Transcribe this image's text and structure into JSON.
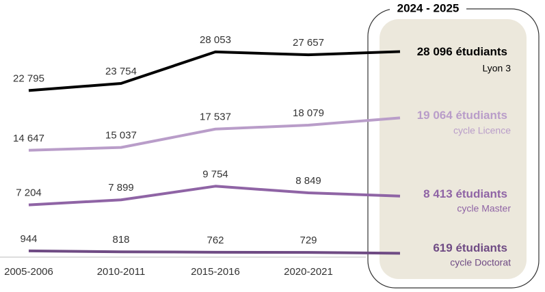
{
  "chart_data": {
    "type": "line",
    "categories": [
      "2005-2006",
      "2010-2011",
      "2015-2016",
      "2020-2021",
      "2024 - 2025"
    ],
    "unit_label": "étudiants",
    "ylim": [
      0,
      30000
    ],
    "series": [
      {
        "name": "Lyon 3",
        "color": "#000000",
        "values": [
          22795,
          23754,
          28053,
          27657,
          28096
        ],
        "value_labels": [
          "22 795",
          "23 754",
          "28 053",
          "27 657",
          "28 096"
        ]
      },
      {
        "name": "cycle Licence",
        "color": "#b99dc9",
        "values": [
          14647,
          15037,
          17537,
          18079,
          19064
        ],
        "value_labels": [
          "14 647",
          "15 037",
          "17 537",
          "18 079",
          "19 064"
        ]
      },
      {
        "name": "cycle Master",
        "color": "#8f64a5",
        "values": [
          7204,
          7899,
          9754,
          8849,
          8413
        ],
        "value_labels": [
          "7 204",
          "7 899",
          "9 754",
          "8 849",
          "8 413"
        ]
      },
      {
        "name": "cycle Doctorat",
        "color": "#6f4b84",
        "values": [
          944,
          818,
          762,
          729,
          619
        ],
        "value_labels": [
          "944",
          "818",
          "762",
          "729",
          "619"
        ]
      }
    ]
  }
}
